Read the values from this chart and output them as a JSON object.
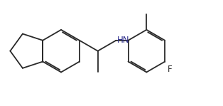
{
  "bg_color": "#ffffff",
  "bond_color": "#2a2a2a",
  "label_color_hn": "#2a2a8a",
  "label_color_f": "#2a2a2a",
  "line_width": 1.3,
  "font_size": 8.5,
  "fig_width": 3.14,
  "fig_height": 1.49,
  "dpi": 100
}
